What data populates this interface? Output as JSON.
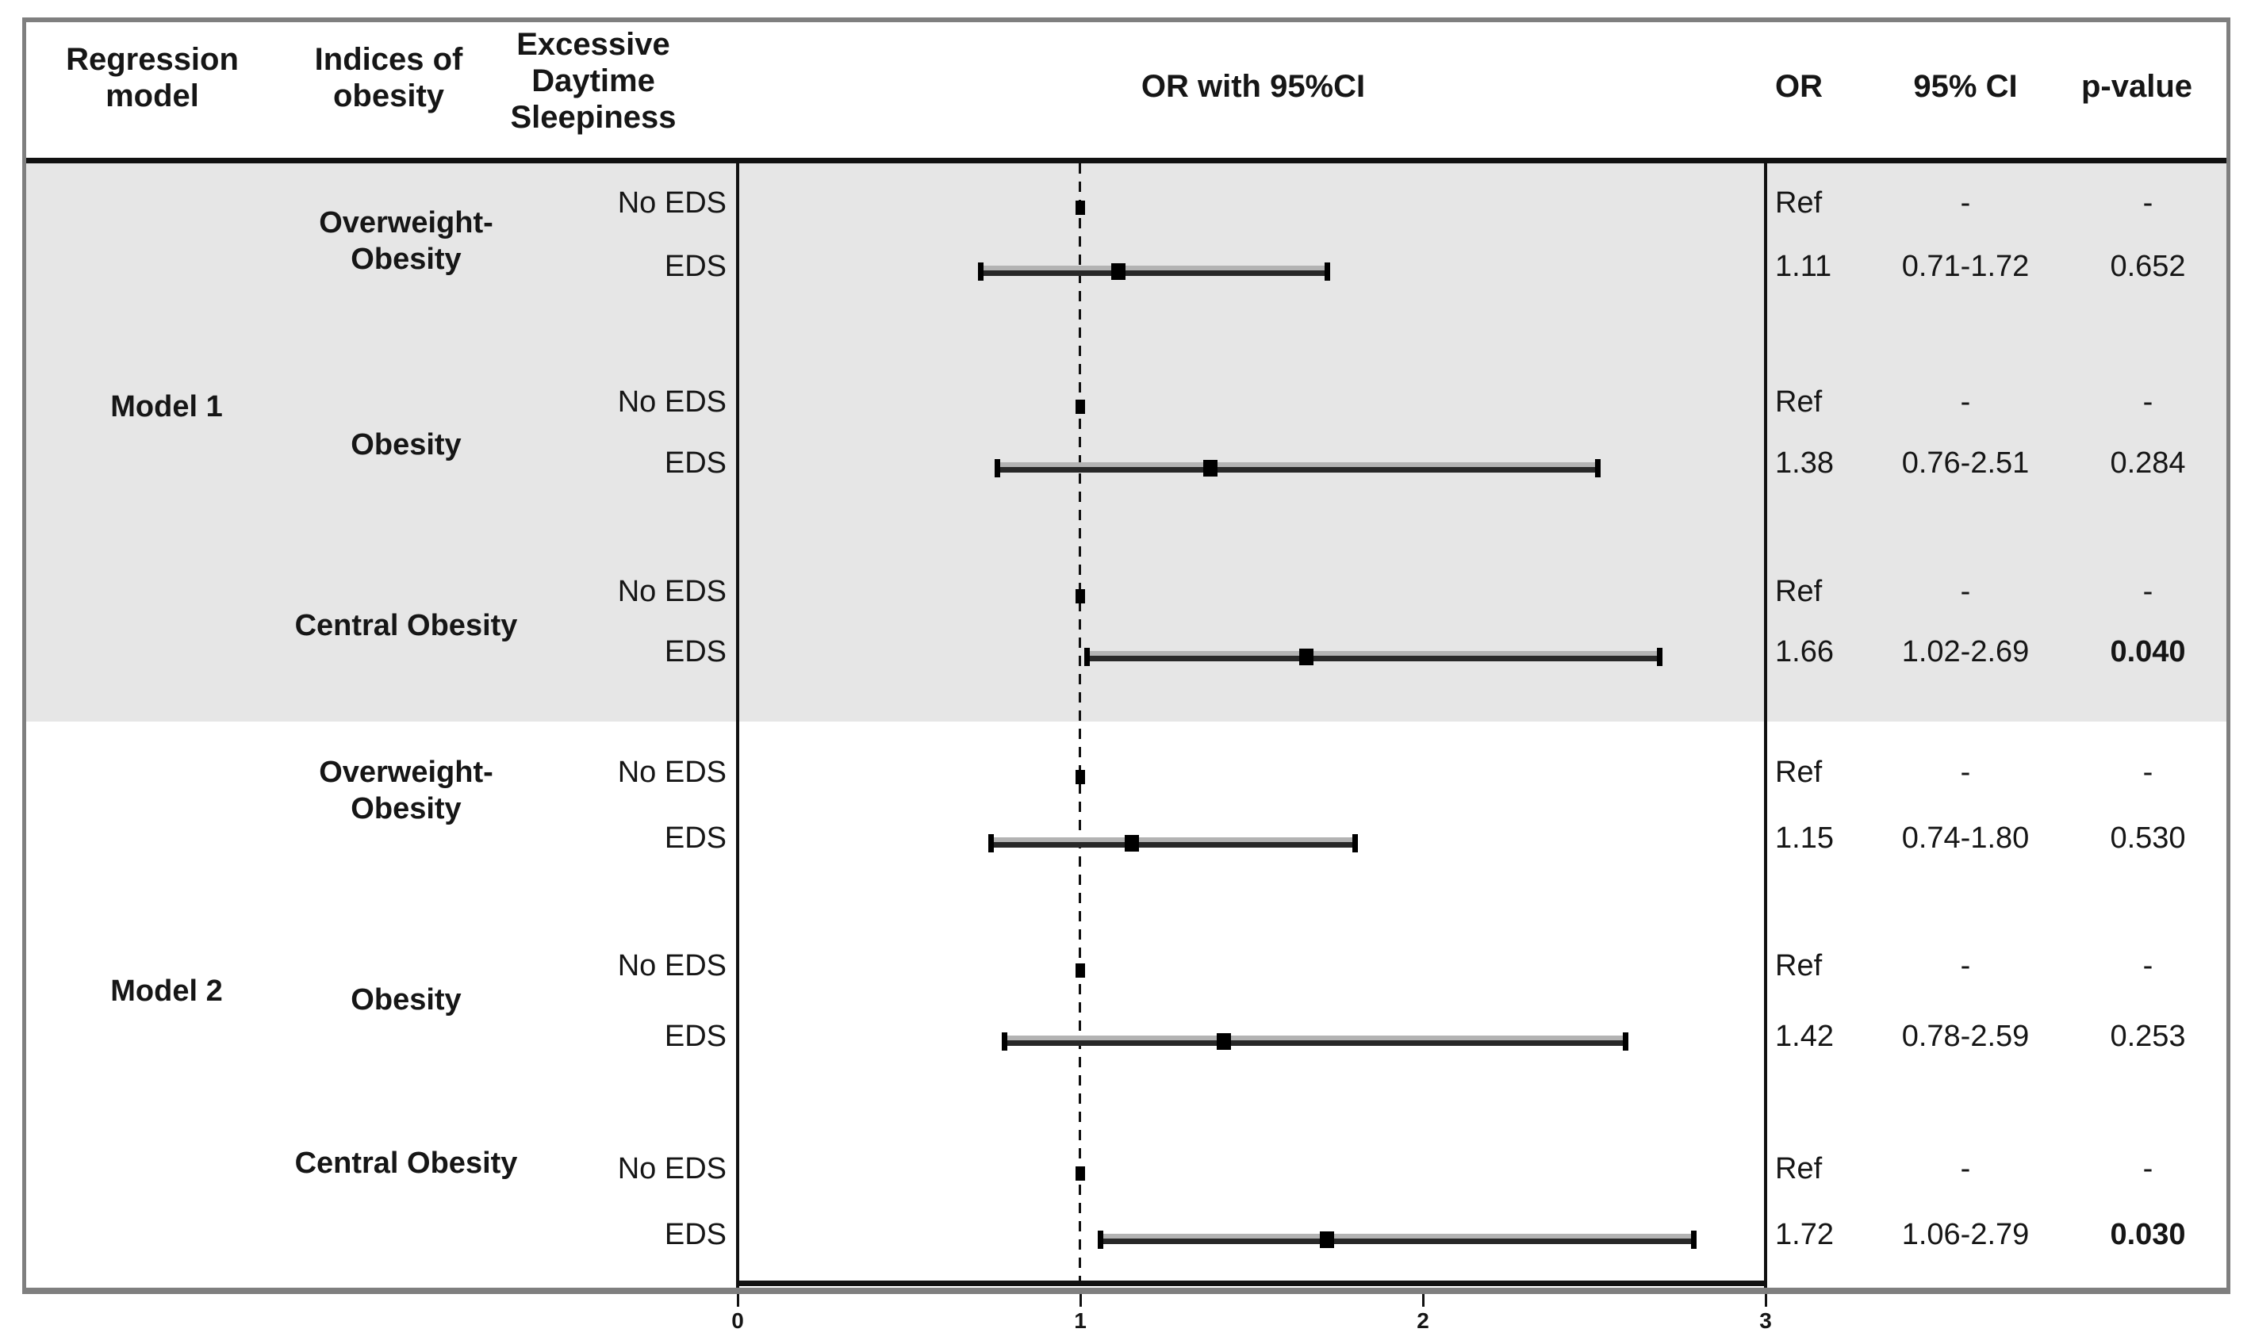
{
  "header": {
    "regression_model": [
      "Regression",
      "model"
    ],
    "indices_of_obesity": [
      "Indices of",
      "obesity"
    ],
    "eds": [
      "Excessive",
      "Daytime",
      "Sleepiness"
    ],
    "or_with_ci": "OR with 95%CI",
    "or": "OR",
    "ci_95": "95% CI",
    "p_value": "p-value"
  },
  "figure": {
    "axis": {
      "tick_labels": [
        "0",
        "1",
        "2",
        "3"
      ]
    }
  },
  "colors": {
    "shaded_band": "#e6e6e6",
    "bar_dark": "#282828",
    "bar_light": "#b3b3b3",
    "marker": "#000000",
    "border": "#7f7f7f"
  },
  "chart_data": {
    "type": "scatter",
    "variant": "forest-plot",
    "title": "OR with 95%CI",
    "xlabel": "",
    "xlim": [
      0,
      3
    ],
    "x_ticks": [
      0,
      1,
      2,
      3
    ],
    "reference_line_x": 1,
    "models": [
      {
        "name": "Model 1",
        "groups": [
          {
            "label_lines": [
              "Overweight-",
              "Obesity"
            ],
            "rows": [
              {
                "eds": "No EDS",
                "is_ref": true,
                "or": 1.0,
                "or_text": "Ref",
                "ci_text": "-",
                "p_text": "-",
                "p_bold": false
              },
              {
                "eds": "EDS",
                "is_ref": false,
                "or": 1.11,
                "ci_low": 0.71,
                "ci_high": 1.72,
                "or_text": "1.11",
                "ci_text": "0.71-1.72",
                "p_text": "0.652",
                "p_bold": false
              }
            ]
          },
          {
            "label_lines": [
              "Obesity"
            ],
            "rows": [
              {
                "eds": "No EDS",
                "is_ref": true,
                "or": 1.0,
                "or_text": "Ref",
                "ci_text": "-",
                "p_text": "-",
                "p_bold": false
              },
              {
                "eds": "EDS",
                "is_ref": false,
                "or": 1.38,
                "ci_low": 0.76,
                "ci_high": 2.51,
                "or_text": "1.38",
                "ci_text": "0.76-2.51",
                "p_text": "0.284",
                "p_bold": false
              }
            ]
          },
          {
            "label_lines": [
              "Central Obesity"
            ],
            "rows": [
              {
                "eds": "No EDS",
                "is_ref": true,
                "or": 1.0,
                "or_text": "Ref",
                "ci_text": "-",
                "p_text": "-",
                "p_bold": false
              },
              {
                "eds": "EDS",
                "is_ref": false,
                "or": 1.66,
                "ci_low": 1.02,
                "ci_high": 2.69,
                "or_text": "1.66",
                "ci_text": "1.02-2.69",
                "p_text": "0.040",
                "p_bold": true
              }
            ]
          }
        ]
      },
      {
        "name": "Model 2",
        "groups": [
          {
            "label_lines": [
              "Overweight-",
              "Obesity"
            ],
            "rows": [
              {
                "eds": "No EDS",
                "is_ref": true,
                "or": 1.0,
                "or_text": "Ref",
                "ci_text": "-",
                "p_text": "-",
                "p_bold": false
              },
              {
                "eds": "EDS",
                "is_ref": false,
                "or": 1.15,
                "ci_low": 0.74,
                "ci_high": 1.8,
                "or_text": "1.15",
                "ci_text": "0.74-1.80",
                "p_text": "0.530",
                "p_bold": false
              }
            ]
          },
          {
            "label_lines": [
              "Obesity"
            ],
            "rows": [
              {
                "eds": "No EDS",
                "is_ref": true,
                "or": 1.0,
                "or_text": "Ref",
                "ci_text": "-",
                "p_text": "-",
                "p_bold": false
              },
              {
                "eds": "EDS",
                "is_ref": false,
                "or": 1.42,
                "ci_low": 0.78,
                "ci_high": 2.59,
                "or_text": "1.42",
                "ci_text": "0.78-2.59",
                "p_text": "0.253",
                "p_bold": false
              }
            ]
          },
          {
            "label_lines": [
              "Central Obesity"
            ],
            "rows": [
              {
                "eds": "No EDS",
                "is_ref": true,
                "or": 1.0,
                "or_text": "Ref",
                "ci_text": "-",
                "p_text": "-",
                "p_bold": false
              },
              {
                "eds": "EDS",
                "is_ref": false,
                "or": 1.72,
                "ci_low": 1.06,
                "ci_high": 2.79,
                "or_text": "1.72",
                "ci_text": "1.06-2.79",
                "p_text": "0.030",
                "p_bold": true
              }
            ]
          }
        ]
      }
    ]
  }
}
